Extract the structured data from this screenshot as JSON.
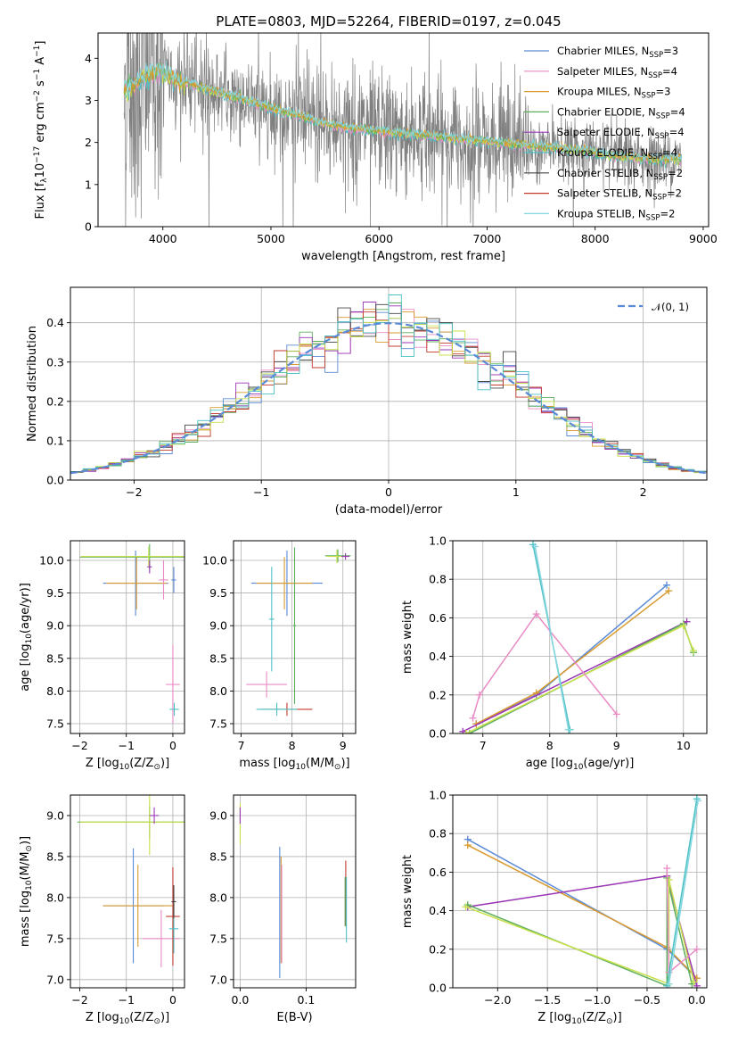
{
  "figure": {
    "title": "PLATE=0803, MJD=52264, FIBERID=0197, z=0.045"
  },
  "series_colors": [
    "#5B8AD6",
    "#E98BC4",
    "#D89A2E",
    "#5DAE5C",
    "#9B37B5",
    "#4CC1C4",
    "#444444",
    "#C23A2E",
    "#86D6E0"
  ],
  "legend": {
    "entries": [
      {
        "name": "Chabrier MILES",
        "n": "3"
      },
      {
        "name": "Salpeter MILES",
        "n": "4"
      },
      {
        "name": "Kroupa MILES",
        "n": "3"
      },
      {
        "name": "Chabrier ELODIE",
        "n": "4"
      },
      {
        "name": "Salpeter ELODIE",
        "n": "4"
      },
      {
        "name": "Kroupa ELODIE",
        "n": "4"
      },
      {
        "name": "Chabrier STELIB",
        "n": "2"
      },
      {
        "name": "Salpeter STELIB",
        "n": "2"
      },
      {
        "name": "Kroupa STELIB",
        "n": "2"
      }
    ],
    "n_prefix": ", N",
    "n_sub": "SSP",
    "n_eq": "="
  },
  "chart_data": [
    {
      "id": "spectrum",
      "type": "line",
      "xlabel": "wavelength [Angstrom, rest frame]",
      "ylabel_parts": [
        "Flux [f",
        "λ",
        "10",
        "−17",
        " erg cm",
        "−2",
        " s",
        "−1",
        " A",
        "−1",
        "]"
      ],
      "xlim": [
        3400,
        9050
      ],
      "ylim": [
        0,
        4.6
      ],
      "xticks": [
        4000,
        5000,
        6000,
        7000,
        8000,
        9000
      ],
      "yticks": [
        0,
        1,
        2,
        3,
        4
      ],
      "grid": false,
      "legend_position": "upper-right",
      "data_color": "#808080",
      "data_x_range": [
        3640,
        8800
      ],
      "model_anchor_x": [
        3640,
        3800,
        3950,
        4100,
        4300,
        4500,
        4700,
        4900,
        5100,
        5300,
        5500,
        5700,
        5900,
        6100,
        6300,
        6500,
        6700,
        6900,
        7100,
        7300,
        7500,
        7700,
        7900,
        8100,
        8300,
        8500,
        8800
      ],
      "model_anchor_y": [
        3.2,
        3.5,
        3.7,
        3.5,
        3.35,
        3.2,
        3.05,
        2.9,
        2.75,
        2.6,
        2.45,
        2.35,
        2.3,
        2.25,
        2.2,
        2.15,
        2.1,
        2.05,
        2.0,
        1.95,
        1.9,
        1.85,
        1.8,
        1.7,
        1.65,
        1.6,
        1.6
      ]
    },
    {
      "id": "residual-hist",
      "type": "line",
      "xlabel": "(data-model)/error",
      "ylabel": "Normed distribution",
      "xlim": [
        -2.5,
        2.5
      ],
      "ylim": [
        0,
        0.49
      ],
      "xticks": [
        -2,
        -1,
        0,
        1,
        2
      ],
      "yticks": [
        0.0,
        0.1,
        0.2,
        0.3,
        0.4
      ],
      "grid": true,
      "legend_label": "𝒩(0, 1)",
      "legend_position": "upper-right",
      "normal_curve": {
        "mu": 0,
        "sigma": 1,
        "color": "#5B8AD6"
      }
    },
    {
      "id": "age-vs-z",
      "type": "scatter",
      "xlabel_parts": [
        "Z [log",
        "10",
        "(Z/Z",
        "⊙",
        ")]"
      ],
      "ylabel_parts": [
        "age  [log",
        "10",
        "(age/yr)]"
      ],
      "xlim": [
        -2.2,
        0.25
      ],
      "ylim": [
        7.35,
        10.3
      ],
      "xticks": [
        -2,
        -1,
        0
      ],
      "yticks": [
        7.5,
        8.0,
        8.5,
        9.0,
        9.5,
        10.0
      ],
      "grid": true,
      "points": [
        {
          "x": -0.8,
          "y": 9.65,
          "xerr": 0.7,
          "yerr": 0.5,
          "c": "#5B8AD6"
        },
        {
          "x": -0.78,
          "y": 9.65,
          "xerr": 0.65,
          "yerr": 0.4,
          "c": "#D89A2E"
        },
        {
          "x": -0.5,
          "y": 10.05,
          "xerr": 1.5,
          "yerr": 0.2,
          "c": "#5DAE5C"
        },
        {
          "x": -0.52,
          "y": 10.06,
          "xerr": 1.45,
          "yerr": 0.15,
          "c": "#C8E04A"
        },
        {
          "x": 0.0,
          "y": 8.1,
          "xerr": 0.15,
          "yerr": 0.6,
          "c": "#E98BC4"
        },
        {
          "x": -0.2,
          "y": 9.7,
          "xerr": 0.1,
          "yerr": 0.3,
          "c": "#E98BC4"
        },
        {
          "x": 0.02,
          "y": 9.7,
          "xerr": 0.05,
          "yerr": 0.2,
          "c": "#5B8AD6"
        },
        {
          "x": 0.03,
          "y": 7.72,
          "xerr": 0.1,
          "yerr": 0.1,
          "c": "#4CC1C4"
        },
        {
          "x": -0.5,
          "y": 9.9,
          "xerr": 0.05,
          "yerr": 0.1,
          "c": "#9B37B5"
        }
      ]
    },
    {
      "id": "age-vs-mass",
      "type": "scatter",
      "xlabel_parts": [
        "mass [log",
        "10",
        "(M/M",
        "⊙",
        ")]"
      ],
      "ylabel_parts": [],
      "xlim": [
        6.85,
        9.25
      ],
      "ylim": [
        7.35,
        10.3
      ],
      "xticks": [
        7,
        8,
        9
      ],
      "yticks": [
        7.5,
        8.0,
        8.5,
        9.0,
        9.5,
        10.0
      ],
      "grid": true,
      "points": [
        {
          "x": 7.9,
          "y": 9.65,
          "xerr": 0.7,
          "yerr": 0.5,
          "c": "#5B8AD6"
        },
        {
          "x": 7.85,
          "y": 9.65,
          "xerr": 0.55,
          "yerr": 0.4,
          "c": "#D89A2E"
        },
        {
          "x": 8.9,
          "y": 10.07,
          "xerr": 0.25,
          "yerr": 0.1,
          "c": "#5DAE5C"
        },
        {
          "x": 8.88,
          "y": 10.06,
          "xerr": 0.2,
          "yerr": 0.1,
          "c": "#C8E04A"
        },
        {
          "x": 7.5,
          "y": 8.1,
          "xerr": 0.4,
          "yerr": 0.2,
          "c": "#E98BC4"
        },
        {
          "x": 7.6,
          "y": 9.1,
          "xerr": 0.05,
          "yerr": 0.8,
          "c": "#4CC1C4"
        },
        {
          "x": 7.9,
          "y": 7.72,
          "xerr": 0.5,
          "yerr": 0.1,
          "c": "#C23A2E"
        },
        {
          "x": 7.7,
          "y": 7.72,
          "xerr": 0.4,
          "yerr": 0.1,
          "c": "#4CC1C4"
        },
        {
          "x": 9.05,
          "y": 10.06,
          "xerr": 0.08,
          "yerr": 0.05,
          "c": "#9B37B5"
        },
        {
          "x": 8.05,
          "y": 9.0,
          "xerr": 0.03,
          "yerr": 1.2,
          "c": "#5DAE5C"
        }
      ]
    },
    {
      "id": "weight-vs-age",
      "type": "line",
      "xlabel_parts": [
        "age  [log",
        "10",
        "(age/yr)]"
      ],
      "ylabel": "mass weight",
      "xlim": [
        6.55,
        10.35
      ],
      "ylim": [
        0,
        1.0
      ],
      "xticks": [
        7,
        8,
        9,
        10
      ],
      "yticks": [
        0.0,
        0.2,
        0.4,
        0.6,
        0.8,
        1.0
      ],
      "grid": true,
      "series": [
        {
          "c": "#5B8AD6",
          "x": [
            6.9,
            7.8,
            9.75
          ],
          "y": [
            0.05,
            0.2,
            0.77
          ]
        },
        {
          "c": "#D89A2E",
          "x": [
            6.9,
            7.8,
            9.78
          ],
          "y": [
            0.05,
            0.21,
            0.74
          ]
        },
        {
          "c": "#9B37B5",
          "x": [
            6.7,
            10.05
          ],
          "y": [
            0.01,
            0.58
          ]
        },
        {
          "c": "#5DAE5C",
          "x": [
            6.8,
            10.0,
            10.15
          ],
          "y": [
            0.0,
            0.57,
            0.42
          ]
        },
        {
          "c": "#C8E04A",
          "x": [
            6.75,
            10.0,
            10.15
          ],
          "y": [
            0.0,
            0.56,
            0.43
          ]
        },
        {
          "c": "#E98BC4",
          "x": [
            6.85,
            6.95,
            7.8,
            9.0
          ],
          "y": [
            0.08,
            0.2,
            0.62,
            0.1
          ]
        },
        {
          "c": "#4CC1C4",
          "x": [
            7.75,
            8.3
          ],
          "y": [
            0.98,
            0.02
          ]
        },
        {
          "c": "#86D6E0",
          "x": [
            7.78,
            8.28
          ],
          "y": [
            0.97,
            0.02
          ]
        }
      ]
    },
    {
      "id": "mass-vs-z",
      "type": "scatter",
      "xlabel_parts": [
        "Z [log",
        "10",
        "(Z/Z",
        "⊙",
        ")]"
      ],
      "ylabel_parts": [
        "mass [log",
        "10",
        "(M/M",
        "⊙",
        ")]"
      ],
      "xlim": [
        -2.2,
        0.25
      ],
      "ylim": [
        6.9,
        9.25
      ],
      "xticks": [
        -2,
        -1,
        0
      ],
      "yticks": [
        7.0,
        7.5,
        8.0,
        8.5,
        9.0
      ],
      "grid": true,
      "points": [
        {
          "x": -0.85,
          "y": 7.9,
          "xerr": 0.65,
          "yerr": 0.7,
          "c": "#5B8AD6"
        },
        {
          "x": -0.75,
          "y": 7.9,
          "xerr": 0.75,
          "yerr": 0.5,
          "c": "#D89A2E"
        },
        {
          "x": -0.5,
          "y": 8.92,
          "xerr": 1.55,
          "yerr": 0.2,
          "c": "#5DAE5C"
        },
        {
          "x": -0.5,
          "y": 8.92,
          "xerr": 1.5,
          "yerr": 0.4,
          "c": "#C8E04A"
        },
        {
          "x": -0.4,
          "y": 9.0,
          "xerr": 0.1,
          "yerr": 0.1,
          "c": "#9B37B5"
        },
        {
          "x": -0.25,
          "y": 7.5,
          "xerr": 0.4,
          "yerr": 0.35,
          "c": "#E98BC4"
        },
        {
          "x": 0.0,
          "y": 7.77,
          "xerr": 0.15,
          "yerr": 0.6,
          "c": "#C23A2E"
        },
        {
          "x": 0.02,
          "y": 7.62,
          "xerr": 0.1,
          "yerr": 0.3,
          "c": "#4CC1C4"
        },
        {
          "x": 0.02,
          "y": 7.95,
          "xerr": 0.05,
          "yerr": 0.2,
          "c": "#444444"
        }
      ]
    },
    {
      "id": "mass-vs-ebv",
      "type": "scatter",
      "xlabel": "E(B-V)",
      "ylabel_parts": [],
      "xlim": [
        -0.01,
        0.175
      ],
      "ylim": [
        6.9,
        9.25
      ],
      "xticks": [
        0.0,
        0.1
      ],
      "yticks": [
        7.0,
        7.5,
        8.0,
        8.5,
        9.0
      ],
      "grid": true,
      "points": [
        {
          "x": 0.06,
          "y": 7.82,
          "xerr": 0.0,
          "yerr": 0.8,
          "c": "#5B8AD6"
        },
        {
          "x": 0.062,
          "y": 7.85,
          "xerr": 0.0,
          "yerr": 0.65,
          "c": "#D89A2E"
        },
        {
          "x": 0.063,
          "y": 7.8,
          "xerr": 0.0,
          "yerr": 0.6,
          "c": "#E98BC4"
        },
        {
          "x": 0.0,
          "y": 8.9,
          "xerr": 0.0,
          "yerr": 0.25,
          "c": "#C8E04A"
        },
        {
          "x": 0.0,
          "y": 9.0,
          "xerr": 0.0,
          "yerr": 0.1,
          "c": "#9B37B5"
        },
        {
          "x": 0.16,
          "y": 8.05,
          "xerr": 0.0,
          "yerr": 0.4,
          "c": "#C23A2E"
        },
        {
          "x": 0.161,
          "y": 7.85,
          "xerr": 0.0,
          "yerr": 0.4,
          "c": "#4CC1C4"
        },
        {
          "x": 0.159,
          "y": 7.95,
          "xerr": 0.0,
          "yerr": 0.3,
          "c": "#5DAE5C"
        }
      ]
    },
    {
      "id": "weight-vs-z",
      "type": "line",
      "xlabel_parts": [
        "Z [log",
        "10",
        "(Z/Z",
        "⊙",
        ")]"
      ],
      "ylabel": "mass weight",
      "xlim": [
        -2.45,
        0.1
      ],
      "ylim": [
        0,
        1.0
      ],
      "xticks": [
        -2.0,
        -1.5,
        -1.0,
        -0.5,
        0.0
      ],
      "yticks": [
        0.0,
        0.2,
        0.4,
        0.6,
        0.8,
        1.0
      ],
      "grid": true,
      "series": [
        {
          "c": "#5B8AD6",
          "x": [
            -2.3,
            -0.3,
            0.0
          ],
          "y": [
            0.77,
            0.2,
            0.05
          ]
        },
        {
          "c": "#D89A2E",
          "x": [
            -2.3,
            -0.3,
            0.0
          ],
          "y": [
            0.74,
            0.21,
            0.05
          ]
        },
        {
          "c": "#9B37B5",
          "x": [
            -2.3,
            -0.3,
            0.0
          ],
          "y": [
            0.42,
            0.58,
            0.01
          ]
        },
        {
          "c": "#5DAE5C",
          "x": [
            -2.3,
            -0.3,
            -0.3,
            -0.05
          ],
          "y": [
            0.43,
            0.01,
            0.57,
            0.02
          ]
        },
        {
          "c": "#C8E04A",
          "x": [
            -2.32,
            -0.28,
            -0.28,
            -0.03
          ],
          "y": [
            0.42,
            0.02,
            0.56,
            0.03
          ]
        },
        {
          "c": "#E98BC4",
          "x": [
            -0.3,
            -0.28,
            0.0
          ],
          "y": [
            0.62,
            0.08,
            0.2
          ]
        },
        {
          "c": "#4CC1C4",
          "x": [
            -0.3,
            0.0
          ],
          "y": [
            0.01,
            0.98
          ]
        },
        {
          "c": "#86D6E0",
          "x": [
            -0.28,
            0.01
          ],
          "y": [
            0.02,
            0.97
          ]
        }
      ]
    }
  ]
}
